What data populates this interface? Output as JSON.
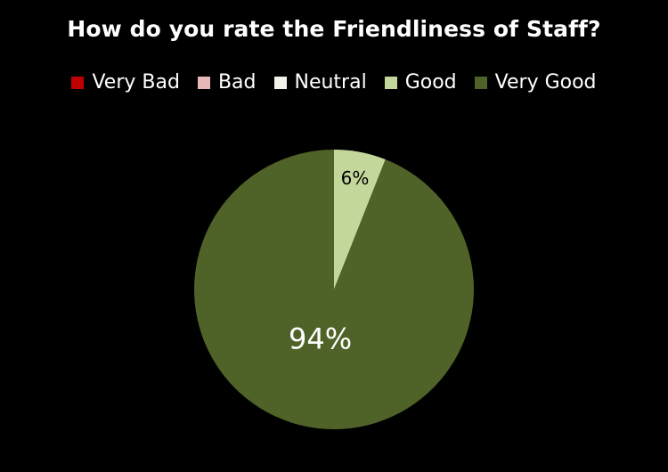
{
  "chart_data": {
    "type": "pie",
    "title": "How do you rate the Friendliness of Staff?",
    "legend_position": "top",
    "categories": [
      "Very Bad",
      "Bad",
      "Neutral",
      "Good",
      "Very Good"
    ],
    "values": [
      0,
      0,
      0,
      6,
      94
    ],
    "data_labels": [
      "",
      "",
      "",
      "6%",
      "94%"
    ],
    "colors": [
      "#c00000",
      "#e6b9b8",
      "#f2f2ea",
      "#c4d79b",
      "#4f6228"
    ],
    "start_angle_deg": 0,
    "direction": "clockwise"
  }
}
